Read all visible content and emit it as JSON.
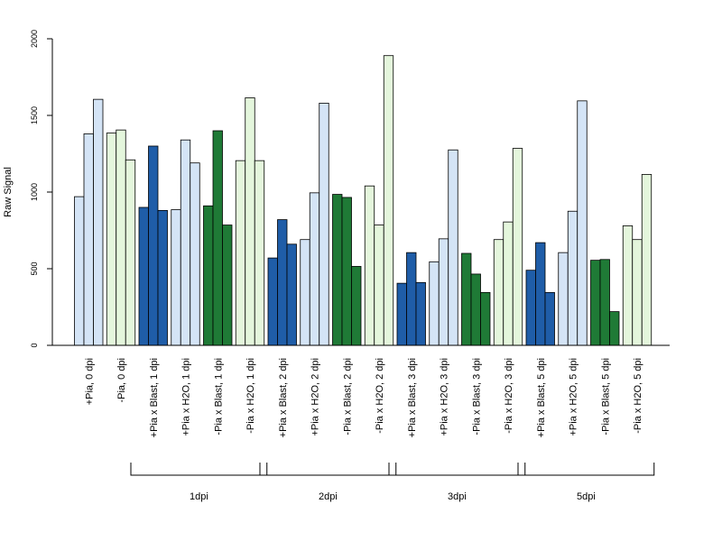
{
  "chart_data": {
    "type": "bar",
    "ylabel": "Raw Signal",
    "ylim": [
      0,
      2000
    ],
    "yticks": [
      0,
      500,
      1000,
      1500,
      2000
    ],
    "grid": false,
    "categories": [
      "+Pia, 0 dpi",
      "-Pia, 0 dpi",
      "+Pia x Blast, 1 dpi",
      "+Pia x H2O, 1 dpi",
      "-Pia x Blast, 1 dpi",
      "-Pia x H2O, 1 dpi",
      "+Pia x Blast, 2 dpi",
      "+Pia x H2O, 2 dpi",
      "-Pia x Blast, 2 dpi",
      "-Pia x H2O, 2 dpi",
      "+Pia x Blast, 3 dpi",
      "+Pia x H2O, 3 dpi",
      "-Pia x Blast, 3 dpi",
      "-Pia x H2O, 3 dpi",
      "+Pia x Blast, 5 dpi",
      "+Pia x H2O, 5 dpi",
      "-Pia x Blast, 5 dpi",
      "-Pia x H2O, 5 dpi"
    ],
    "values": [
      [
        970,
        1380,
        1605
      ],
      [
        1385,
        1405,
        1210
      ],
      [
        900,
        1300,
        880
      ],
      [
        885,
        1340,
        1190
      ],
      [
        910,
        1400,
        785
      ],
      [
        1205,
        1615,
        1205
      ],
      [
        570,
        820,
        660
      ],
      [
        690,
        995,
        1580
      ],
      [
        985,
        965,
        515
      ],
      [
        1040,
        785,
        1890
      ],
      [
        405,
        605,
        410
      ],
      [
        545,
        695,
        1275
      ],
      [
        600,
        465,
        345
      ],
      [
        690,
        805,
        1285
      ],
      [
        490,
        670,
        345
      ],
      [
        605,
        875,
        1595
      ],
      [
        555,
        560,
        220
      ],
      [
        780,
        690,
        1115
      ]
    ],
    "colors": {
      "plus_blast": "#1f5da8",
      "plus_h2o": "#d4e4f6",
      "minus_blast": "#1f7a36",
      "minus_h2o": "#e4f6dc"
    },
    "bar_color_keys": [
      "plus_h2o",
      "minus_h2o",
      "plus_blast",
      "plus_h2o",
      "minus_blast",
      "minus_h2o",
      "plus_blast",
      "plus_h2o",
      "minus_blast",
      "minus_h2o",
      "plus_blast",
      "plus_h2o",
      "minus_blast",
      "minus_h2o",
      "plus_blast",
      "plus_h2o",
      "minus_blast",
      "minus_h2o"
    ],
    "groups": [
      {
        "label": "1dpi",
        "from": 2,
        "to": 5
      },
      {
        "label": "2dpi",
        "from": 6,
        "to": 9
      },
      {
        "label": "3dpi",
        "from": 10,
        "to": 13
      },
      {
        "label": "5dpi",
        "from": 14,
        "to": 17
      }
    ]
  }
}
